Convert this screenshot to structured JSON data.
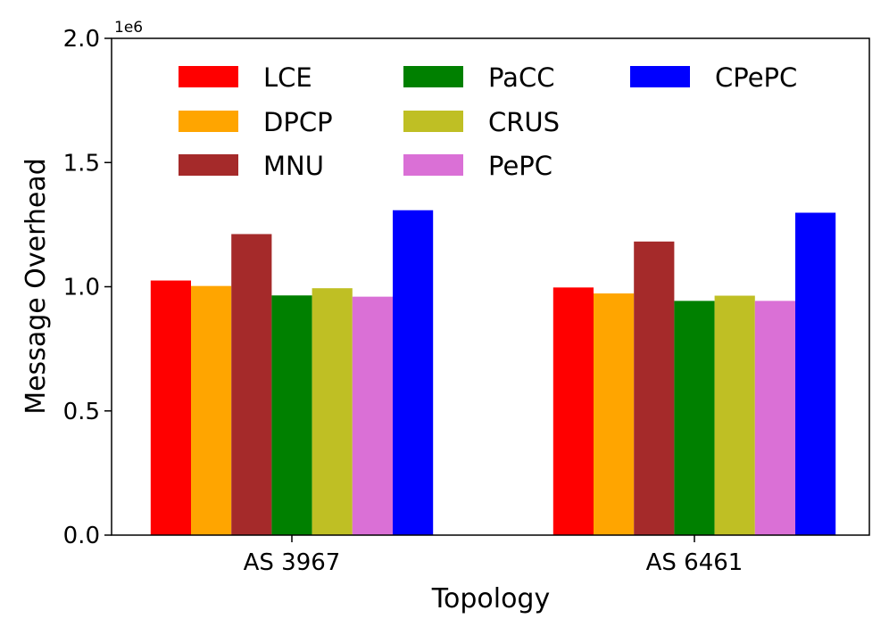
{
  "chart_data": {
    "type": "bar",
    "title": "",
    "xlabel": "Topology",
    "ylabel": "Message Overhead",
    "y_offset_label": "1e6",
    "y_scale": 1000000,
    "ylim": [
      0,
      2000000
    ],
    "yticks": [
      0,
      500000,
      1000000,
      1500000,
      2000000
    ],
    "ytick_labels": [
      "0.0",
      "0.5",
      "1.0",
      "1.5",
      "2.0"
    ],
    "categories": [
      "AS 3967",
      "AS 6461"
    ],
    "grid": false,
    "legend_placement": "top-left, 3 columns",
    "series": [
      {
        "name": "LCE",
        "color": "#ff0000",
        "values": [
          1025000,
          997000
        ]
      },
      {
        "name": "DPCP",
        "color": "#ffa500",
        "values": [
          1003000,
          973000
        ]
      },
      {
        "name": "MNU",
        "color": "#a52a2a",
        "values": [
          1212000,
          1182000
        ]
      },
      {
        "name": "PaCC",
        "color": "#008000",
        "values": [
          965000,
          943000
        ]
      },
      {
        "name": "CRUS",
        "color": "#bfbf24",
        "values": [
          994000,
          964000
        ]
      },
      {
        "name": "PePC",
        "color": "#da70d6",
        "values": [
          960000,
          943000
        ]
      },
      {
        "name": "CPePC",
        "color": "#0000ff",
        "values": [
          1308000,
          1298000
        ]
      }
    ]
  }
}
